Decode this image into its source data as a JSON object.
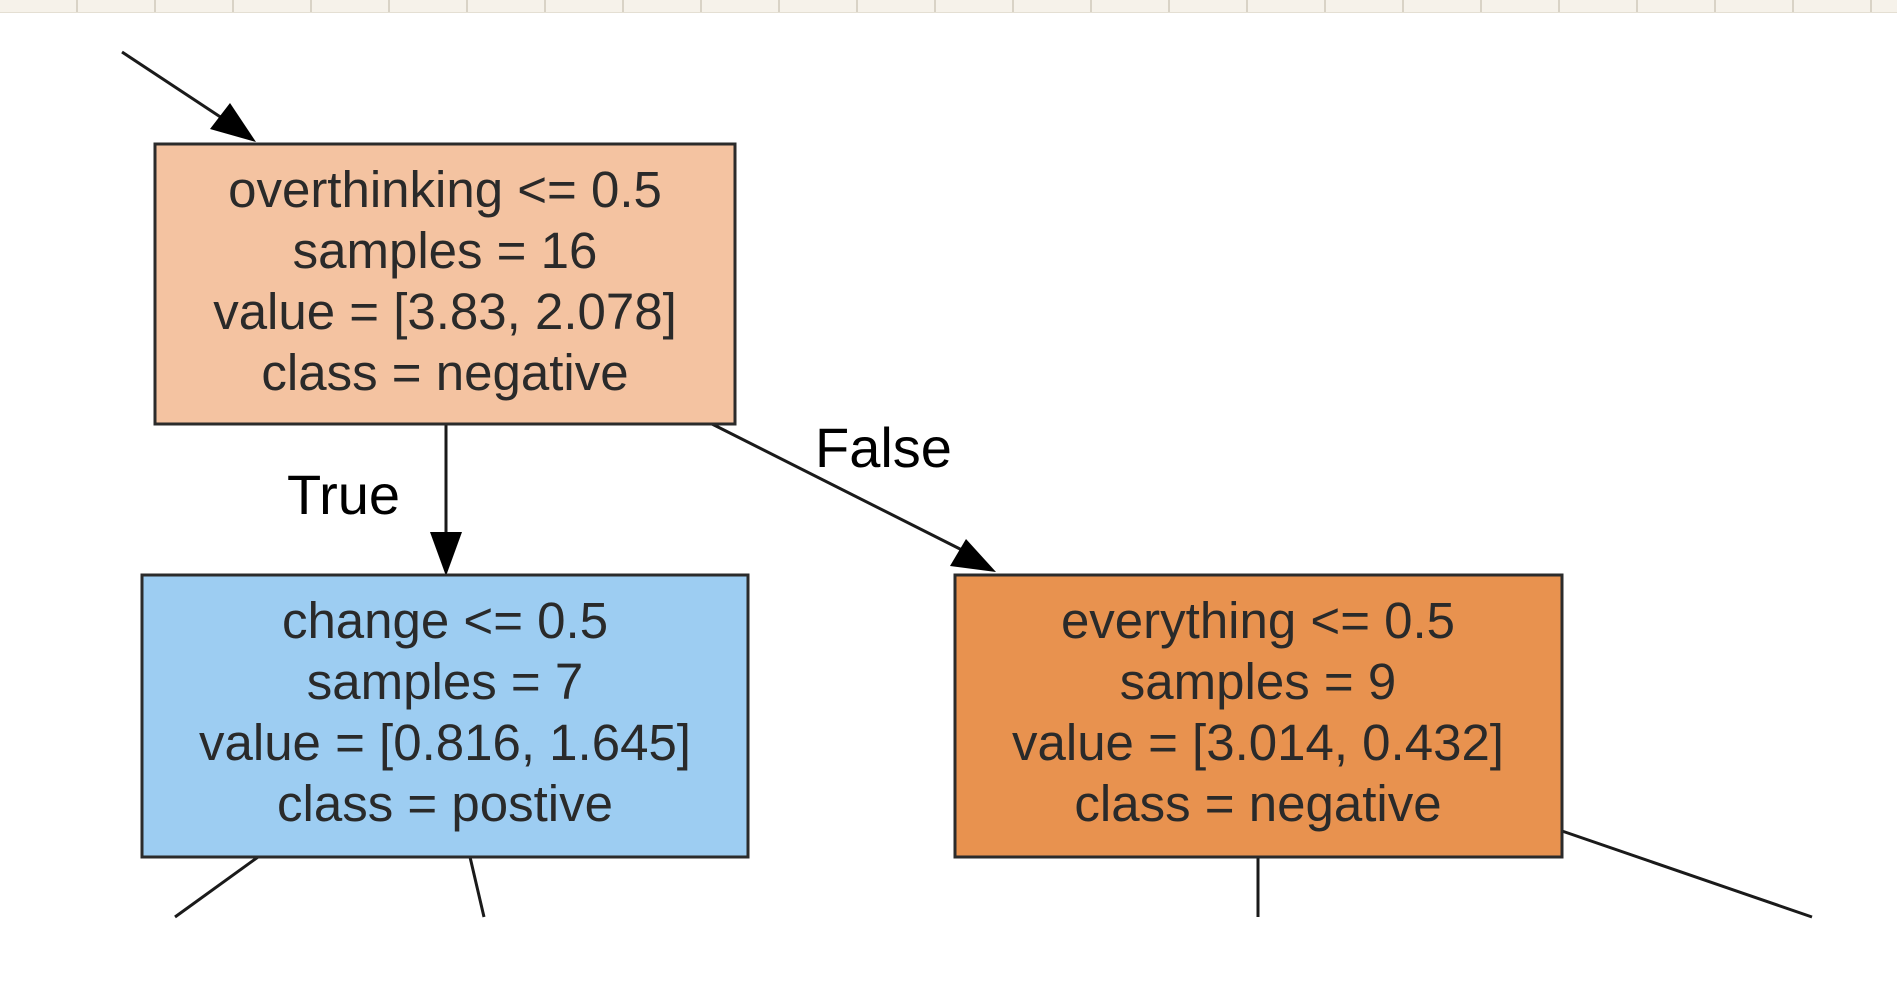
{
  "colors": {
    "root_fill": "#f4c3a1",
    "left_fill": "#9dcdf2",
    "right_fill": "#e8924f",
    "ruler_bg": "#f6f2ea"
  },
  "tree": {
    "root": {
      "line1": "overthinking <= 0.5",
      "line2": "samples = 16",
      "line3": "value = [3.83, 2.078]",
      "line4": "class = negative"
    },
    "left": {
      "line1": "change <= 0.5",
      "line2": "samples = 7",
      "line3": "value = [0.816, 1.645]",
      "line4": "class = postive"
    },
    "right": {
      "line1": "everything <= 0.5",
      "line2": "samples = 9",
      "line3": "value = [3.014, 0.432]",
      "line4": "class = negative"
    },
    "edges": {
      "true_label": "True",
      "false_label": "False"
    }
  }
}
